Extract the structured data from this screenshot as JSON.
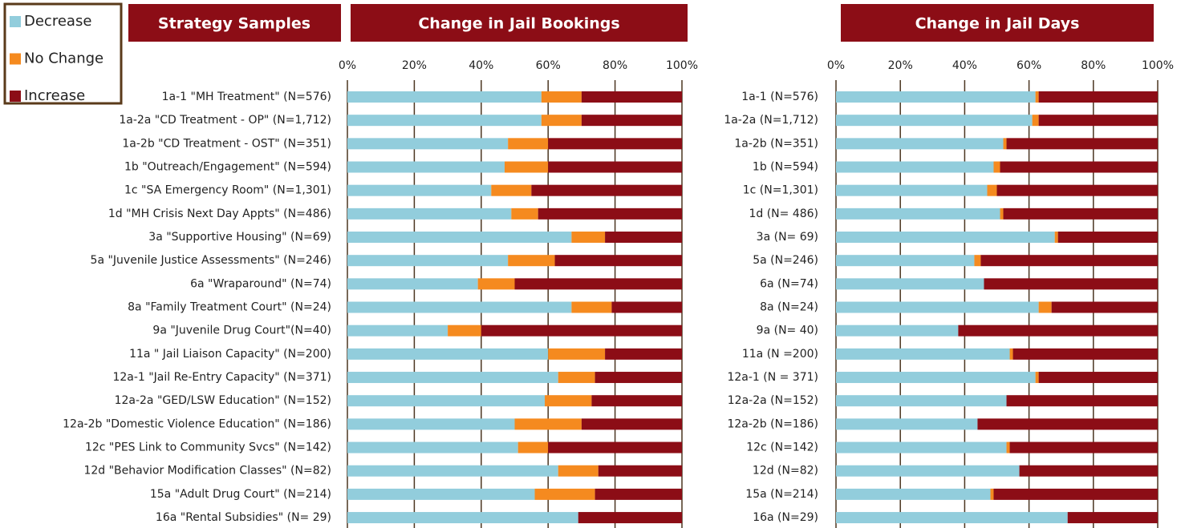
{
  "chart_data": [
    {
      "type": "bar",
      "orientation": "horizontal",
      "stacked": true,
      "title": "Change in Jail Bookings",
      "y_label": "Strategy Samples",
      "categories": [
        "1a-1 \"MH Treatment\"  (N=576)",
        "1a-2a \"CD Treatment - OP\"  (N=1,712)",
        "1a-2b \"CD Treatment - OST\"  (N=351)",
        "1b \"Outreach/Engagement\"  (N=594)",
        "1c \"SA Emergency Room\"  (N=1,301)",
        "1d \"MH Crisis Next Day Appts\"   (N=486)",
        "3a \"Supportive Housing\"  (N=69)",
        "5a \"Juvenile Justice Assessments\"  (N=246)",
        "6a \"Wraparound\"  (N=74)",
        "8a \"Family Treatment Court\"  (N=24)",
        "9a \"Juvenile Drug Court\"(N=40)",
        "11a \" Jail Liaison Capacity\"  (N=200)",
        "12a-1 \"Jail Re-Entry Capacity\"  (N=371)",
        "12a-2a \"GED/LSW Education\"  (N=152)",
        "12a-2b \"Domestic Violence Education\"  (N=186)",
        "12c \"PES Link to Community Svcs\"  (N=142)",
        "12d \"Behavior Modification Classes\"  (N=82)",
        "15a \"Adult Drug Court\"  (N=214)",
        "16a \"Rental Subsidies\"  (N= 29)"
      ],
      "series": [
        {
          "name": "Decrease",
          "color": "#92cddc",
          "values": [
            58,
            58,
            48,
            47,
            43,
            49,
            67,
            48,
            39,
            67,
            30,
            60,
            63,
            59,
            50,
            51,
            63,
            56,
            69
          ]
        },
        {
          "name": "No Change",
          "color": "#f58a1f",
          "values": [
            12,
            12,
            12,
            13,
            12,
            8,
            10,
            14,
            11,
            12,
            10,
            17,
            11,
            14,
            20,
            9,
            12,
            18,
            0
          ]
        },
        {
          "name": "Increase",
          "color": "#8c0d16",
          "values": [
            30,
            30,
            40,
            40,
            45,
            43,
            23,
            38,
            50,
            21,
            60,
            23,
            26,
            27,
            30,
            40,
            25,
            26,
            31
          ]
        }
      ],
      "xlim": [
        0,
        100
      ],
      "xticks": [
        {
          "value": 0,
          "label": "0%"
        },
        {
          "value": 20,
          "label": "20%"
        },
        {
          "value": 40,
          "label": "40%"
        },
        {
          "value": 60,
          "label": "60%"
        },
        {
          "value": 80,
          "label": "80%"
        },
        {
          "value": 100,
          "label": "100%"
        }
      ],
      "grid": true
    },
    {
      "type": "bar",
      "orientation": "horizontal",
      "stacked": true,
      "title": "Change in Jail Days",
      "categories": [
        "1a-1 (N=576)",
        "1a-2a (N=1,712)",
        "1a-2b (N=351)",
        "1b (N=594)",
        "1c (N=1,301)",
        "1d (N= 486)",
        "3a (N= 69)",
        "5a (N=246)",
        "6a (N=74)",
        "8a (N=24)",
        "9a (N= 40)",
        "11a (N =200)",
        "12a-1 (N = 371)",
        "12a-2a (N=152)",
        "12a-2b (N=186)",
        "12c (N=142)",
        "12d (N=82)",
        "15a (N=214)",
        "16a (N=29)"
      ],
      "series": [
        {
          "color": "#92cddc",
          "values": [
            62,
            61,
            52,
            49,
            47,
            51,
            68,
            43,
            46,
            63,
            38,
            54,
            62,
            53,
            44,
            53,
            57,
            48,
            72
          ]
        },
        {
          "color": "#f58a1f",
          "values": [
            1,
            2,
            1,
            2,
            3,
            1,
            1,
            2,
            0,
            4,
            0,
            1,
            1,
            0,
            0,
            1,
            0,
            1,
            0
          ]
        },
        {
          "color": "#8c0d16",
          "values": [
            37,
            37,
            47,
            49,
            50,
            48,
            31,
            55,
            54,
            33,
            62,
            45,
            37,
            47,
            56,
            46,
            43,
            51,
            28
          ]
        }
      ],
      "xlim": [
        0,
        100
      ],
      "xticks": [
        {
          "value": 0,
          "label": "0%"
        },
        {
          "value": 20,
          "label": "20%"
        },
        {
          "value": 40,
          "label": "40%"
        },
        {
          "value": 60,
          "label": "60%"
        },
        {
          "value": 80,
          "label": "80%"
        },
        {
          "value": 100,
          "label": "100%"
        }
      ],
      "grid": true
    }
  ]
}
